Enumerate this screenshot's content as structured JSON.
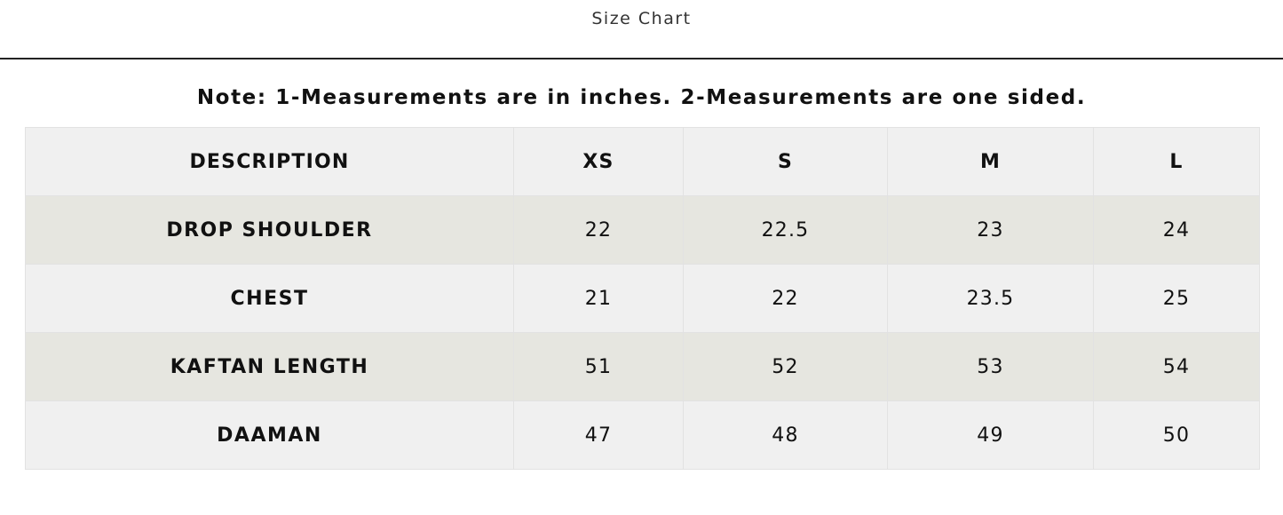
{
  "header": {
    "title": "Size Chart"
  },
  "note": "Note: 1-Measurements are in inches. 2-Measurements are one sided.",
  "table": {
    "columns": [
      "DESCRIPTION",
      "XS",
      "S",
      "M",
      "L"
    ],
    "rows": [
      [
        "DROP SHOULDER",
        22,
        22.5,
        23,
        24
      ],
      [
        "CHEST",
        21,
        22,
        23.5,
        25
      ],
      [
        "KAFTAN LENGTH",
        51,
        52,
        53,
        54
      ],
      [
        "DAAMAN",
        47,
        48,
        49,
        50
      ]
    ]
  }
}
